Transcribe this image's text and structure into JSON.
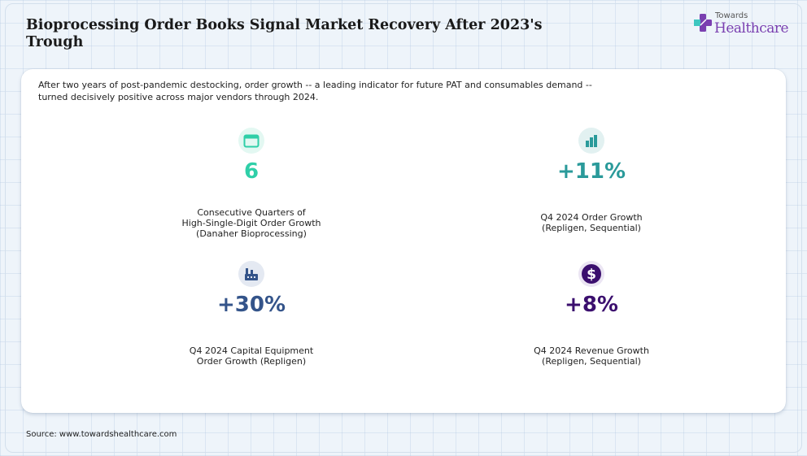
{
  "header": {
    "title": "Bioprocessing Order Books Signal Market Recovery After 2023's Trough",
    "logo_top": "Towards",
    "logo_brand": "Healthcare"
  },
  "intro": "After two years of post-pandemic destocking, order growth -- a leading indicator for future PAT and consumables demand -- turned decisively positive across major vendors through 2024.",
  "stats": [
    {
      "icon": "calendar-icon",
      "value": "6",
      "label": "Consecutive Quarters of\nHigh-Single-Digit Order Growth\n(Danaher Bioprocessing)",
      "color": "#2fcfa8",
      "bg": "#e3f8f2"
    },
    {
      "icon": "building-growth-icon",
      "value": "+11%",
      "label": "Q4 2024 Order Growth\n(Repligen, Sequential)",
      "color": "#2a9a9a",
      "bg": "#e2f1f1"
    },
    {
      "icon": "factory-icon",
      "value": "+30%",
      "label": "Q4 2024 Capital Equipment\nOrder Growth (Repligen)",
      "color": "#34548a",
      "bg": "#e4e9f2"
    },
    {
      "icon": "dollar-icon",
      "value": "+8%",
      "label": "Q4 2024 Revenue Growth\n(Repligen, Sequential)",
      "color": "#3b0f6e",
      "bg": "#ebe5f3"
    }
  ],
  "footer": {
    "source": "Source: www.towardshealthcare.com"
  }
}
